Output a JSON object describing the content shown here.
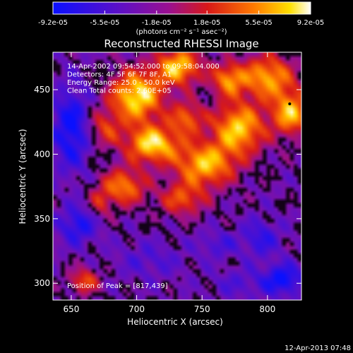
{
  "chart_data": {
    "type": "heatmap",
    "title": "Reconstructed RHESSI Image",
    "xlabel": "Heliocentric X (arcsec)",
    "ylabel": "Heliocentric Y (arcsec)",
    "xlim": [
      636,
      826
    ],
    "ylim": [
      287,
      479
    ],
    "x_ticks": [
      650,
      700,
      750,
      800
    ],
    "y_ticks": [
      300,
      350,
      400,
      450
    ],
    "colorbar": {
      "colormap": "blue-purple-red-orange-yellow-white",
      "range": [
        -9.2e-05,
        9.2e-05
      ],
      "tick_labels": [
        "-9.2e-05",
        "-5.5e-05",
        "-1.8e-05",
        "1.8e-05",
        "5.5e-05",
        "9.2e-05"
      ],
      "tick_values": [
        -9.2e-05,
        -5.5e-05,
        -1.8e-05,
        1.8e-05,
        5.5e-05,
        9.2e-05
      ],
      "unit_label": "(photons cm⁻² s⁻¹ asec⁻²)"
    },
    "info_lines": [
      "14-Apr-2002 09:54:52.000 to 09:58:04.000",
      "Detectors: 4F 5F 6F 7F 8F, A1",
      "Energy Range: 25.0 - 50.0 keV",
      "Clean     Total counts: 2.60E+05"
    ],
    "peak_text": "Position of Peak = [817,439]",
    "peak_position": [
      817,
      439
    ],
    "footer_text": "12-Apr-2013 07:48",
    "image_blobs": [
      {
        "x": 700,
        "y": 445,
        "sx": 14,
        "sy": 14,
        "a": 1.0
      },
      {
        "x": 732,
        "y": 468,
        "sx": 12,
        "sy": 10,
        "a": 0.9
      },
      {
        "x": 712,
        "y": 408,
        "sx": 14,
        "sy": 10,
        "a": 0.95
      },
      {
        "x": 752,
        "y": 392,
        "sx": 16,
        "sy": 12,
        "a": 0.85
      },
      {
        "x": 778,
        "y": 420,
        "sx": 14,
        "sy": 14,
        "a": 0.9
      },
      {
        "x": 800,
        "y": 460,
        "sx": 14,
        "sy": 12,
        "a": 0.8
      },
      {
        "x": 818,
        "y": 432,
        "sx": 10,
        "sy": 12,
        "a": 0.85
      },
      {
        "x": 770,
        "y": 458,
        "sx": 9,
        "sy": 9,
        "a": 0.7
      },
      {
        "x": 738,
        "y": 428,
        "sx": 9,
        "sy": 9,
        "a": 0.6
      },
      {
        "x": 690,
        "y": 375,
        "sx": 12,
        "sy": 10,
        "a": 0.7
      },
      {
        "x": 735,
        "y": 365,
        "sx": 12,
        "sy": 9,
        "a": 0.55
      },
      {
        "x": 675,
        "y": 420,
        "sx": 9,
        "sy": 10,
        "a": 0.45
      },
      {
        "x": 660,
        "y": 302,
        "sx": 8,
        "sy": 7,
        "a": 0.55
      },
      {
        "x": 672,
        "y": 362,
        "sx": 6,
        "sy": 8,
        "a": 0.35
      },
      {
        "x": 762,
        "y": 330,
        "sx": 10,
        "sy": 7,
        "a": -0.25
      },
      {
        "x": 795,
        "y": 335,
        "sx": 10,
        "sy": 10,
        "a": -0.35
      },
      {
        "x": 650,
        "y": 420,
        "sx": 10,
        "sy": 22,
        "a": -0.55
      },
      {
        "x": 655,
        "y": 345,
        "sx": 10,
        "sy": 10,
        "a": -0.45
      },
      {
        "x": 812,
        "y": 303,
        "sx": 10,
        "sy": 8,
        "a": -0.55
      },
      {
        "x": 710,
        "y": 318,
        "sx": 18,
        "sy": 10,
        "a": -0.2
      },
      {
        "x": 780,
        "y": 300,
        "sx": 16,
        "sy": 8,
        "a": -0.2
      }
    ],
    "image_baseline": -0.05
  }
}
